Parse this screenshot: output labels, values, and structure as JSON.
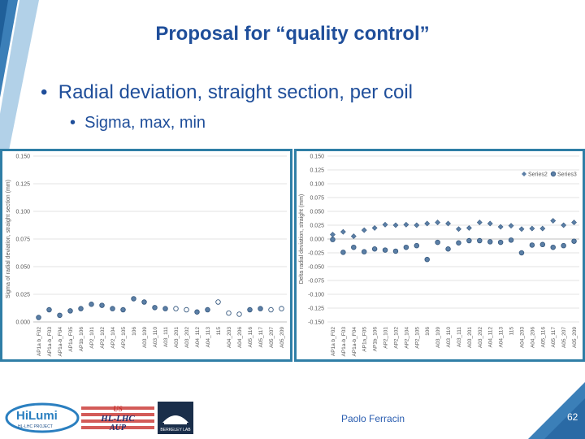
{
  "slide": {
    "title": "Proposal for “quality control”",
    "bullet1": "Radial deviation, straight section, per coil",
    "bullet2": "Sigma, max, min",
    "footer_name": "Paolo Ferracin",
    "page_number": "62",
    "logos": {
      "hilumi_main": "HiLumi",
      "hilumi_sub": "HL-LHC PROJECT",
      "us_line1": "US",
      "us_line2": "HL-LHC",
      "us_line3": "AUP",
      "berkeley": "BERKELEY LAB"
    },
    "colors": {
      "title": "#1f4e9a",
      "accent": "#2f7ea6",
      "marker": "#4a6f96"
    }
  },
  "chart_data": [
    {
      "type": "scatter",
      "title": "",
      "ylabel": "Sigma of radial deviation, straight section (mm)",
      "xlabel": "",
      "ylim": [
        0,
        0.15
      ],
      "yticks": [
        "0.150",
        "0.125",
        "0.100",
        "0.075",
        "0.050",
        "0.025",
        "0.000"
      ],
      "categories": [
        "AP1a b_F02",
        "AP1a-b_F03",
        "AP1a-b_F04",
        "AP1a_F05",
        "AP1b_106",
        "AP2_101",
        "AP2_102",
        "AP2_104",
        "AP2_105",
        "106",
        "A03_109",
        "A03_110",
        "A03_111",
        "A03_201",
        "A03_202",
        "A04_112",
        "A04_113",
        "115",
        "A04_203",
        "A04_206",
        "A05_116",
        "A05_117",
        "A05_207",
        "A05_209"
      ],
      "series": [
        {
          "values": [
            0.004,
            0.011,
            0.006,
            0.01,
            0.012,
            0.016,
            0.015,
            0.012,
            0.011,
            0.021,
            0.018,
            0.013,
            0.012,
            0.012,
            0.011,
            0.009,
            0.011,
            0.018,
            0.008,
            0.007,
            0.011,
            0.012,
            0.011,
            0.012
          ],
          "open": [
            false,
            false,
            false,
            false,
            false,
            false,
            false,
            false,
            false,
            false,
            false,
            false,
            false,
            true,
            true,
            false,
            false,
            true,
            true,
            true,
            false,
            false,
            true,
            true
          ]
        }
      ]
    },
    {
      "type": "scatter",
      "title": "",
      "ylabel": "Delta radial deviation, straight (mm)",
      "xlabel": "",
      "ylim": [
        -0.15,
        0.15
      ],
      "yticks": [
        "0.150",
        "0.125",
        "0.100",
        "0.075",
        "0.050",
        "0.025",
        "0.000",
        "-0.025",
        "-0.050",
        "-0.075",
        "-0.100",
        "-0.125",
        "-0.150"
      ],
      "legend_position": "top-right",
      "categories": [
        "AP1a b_F02",
        "AP1a-b_F03",
        "AP1a-b_F04",
        "AP1a_F05",
        "AP1b_106",
        "AP2_101",
        "AP2_102",
        "AP2_104",
        "AP2_105",
        "106",
        "A03_109",
        "A03_110",
        "A03_111",
        "A03_201",
        "A03_202",
        "A04_112",
        "A04_113",
        "115",
        "A04_203",
        "A04_206",
        "A05_116",
        "A05_117",
        "A05_207",
        "A05_209"
      ],
      "series": [
        {
          "name": "Series2",
          "values": [
            0.008,
            0.013,
            0.005,
            0.016,
            0.02,
            0.026,
            0.025,
            0.026,
            0.025,
            0.028,
            0.03,
            0.028,
            0.018,
            0.02,
            0.03,
            0.028,
            0.022,
            0.024,
            0.018,
            0.019,
            0.019,
            0.033,
            0.025,
            0.03
          ],
          "marker": "diamond"
        },
        {
          "name": "Series3",
          "values": [
            -0.001,
            -0.024,
            -0.015,
            -0.023,
            -0.018,
            -0.02,
            -0.022,
            -0.015,
            -0.012,
            -0.037,
            -0.006,
            -0.018,
            -0.007,
            -0.003,
            -0.003,
            -0.005,
            -0.006,
            -0.002,
            -0.025,
            -0.011,
            -0.01,
            -0.015,
            -0.012,
            -0.004
          ],
          "marker": "circle"
        }
      ]
    }
  ]
}
